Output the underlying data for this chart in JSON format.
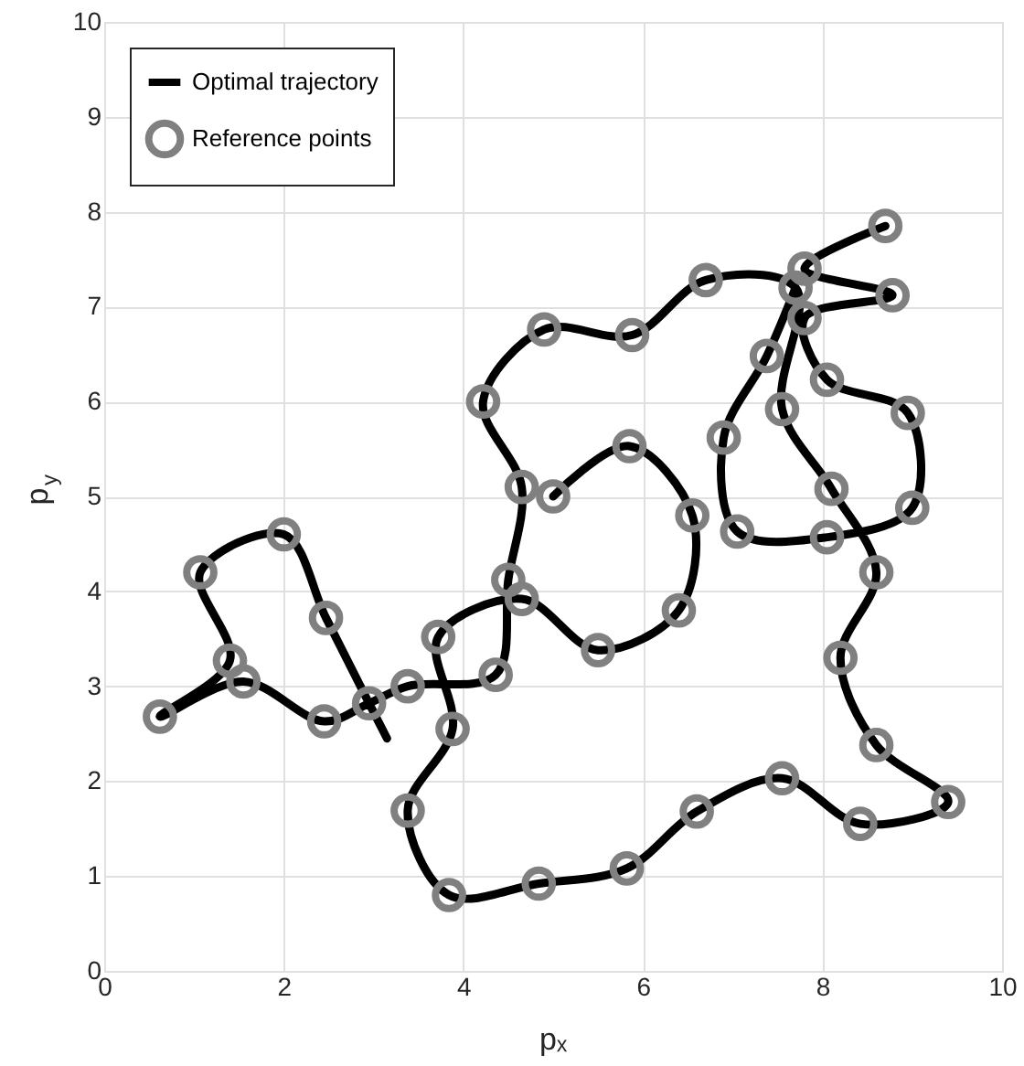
{
  "chart_data": {
    "type": "scatter",
    "xlabel": "pₓ",
    "ylabel": "p$_{y}$",
    "xlim": [
      0,
      10
    ],
    "ylim": [
      0,
      10
    ],
    "xticks": [
      0,
      2,
      4,
      6,
      8,
      10
    ],
    "yticks": [
      0,
      1,
      2,
      3,
      4,
      5,
      6,
      7,
      8,
      9,
      10
    ],
    "grid": true,
    "legend": "top left",
    "series": [
      {
        "name": "Optimal trajectory",
        "type": "line",
        "color": "#000000",
        "marker": "none",
        "line_style": "solid",
        "x": [
          3.15,
          2.95,
          2.47,
          2.0,
          1.07,
          1.4,
          0.62,
          1.55,
          2.45,
          2.95,
          3.38,
          4.36,
          4.5,
          4.65,
          4.22,
          4.9,
          5.88,
          6.7,
          7.7,
          7.55,
          8.1,
          8.6,
          8.2,
          8.6,
          9.4,
          8.42,
          7.55,
          6.6,
          5.82,
          4.84,
          3.84,
          3.38,
          3.88,
          3.72,
          4.65,
          5.5,
          6.4,
          6.55,
          5.85,
          5.0,
          null,
          8.7,
          7.8,
          8.78,
          7.8,
          8.05,
          8.95,
          9.0,
          8.05,
          7.05,
          6.9,
          7.38,
          7.7
        ],
        "values": [
          2.45,
          2.82,
          3.72,
          4.6,
          4.2,
          3.27,
          2.68,
          3.05,
          2.63,
          2.82,
          3.0,
          3.12,
          4.12,
          5.1,
          6.0,
          6.76,
          6.7,
          7.28,
          7.2,
          5.92,
          5.08,
          4.2,
          3.3,
          2.38,
          1.78,
          1.55,
          2.03,
          1.68,
          1.08,
          0.92,
          0.8,
          1.69,
          2.55,
          3.52,
          3.92,
          3.38,
          3.8,
          4.8,
          5.53,
          5.0,
          null,
          7.85,
          7.4,
          7.12,
          6.88,
          6.23,
          5.88,
          4.88,
          4.57,
          4.63,
          5.62,
          6.48,
          7.2
        ]
      },
      {
        "name": "Reference points",
        "color": "#808080",
        "marker": "circle",
        "x": [
          0.62,
          1.07,
          1.4,
          1.55,
          2.0,
          2.47,
          2.45,
          2.95,
          3.38,
          3.72,
          3.88,
          3.38,
          3.84,
          4.84,
          5.82,
          6.6,
          7.55,
          8.42,
          9.4,
          8.6,
          8.2,
          8.6,
          8.1,
          8.05,
          9.0,
          8.95,
          8.05,
          7.55,
          7.05,
          6.9,
          7.38,
          7.7,
          7.8,
          7.8,
          8.78,
          8.7,
          6.7,
          5.88,
          4.9,
          4.22,
          4.65,
          5.0,
          5.85,
          6.55,
          6.4,
          5.5,
          4.65,
          4.5,
          4.36
        ],
        "values": [
          2.68,
          4.2,
          3.27,
          3.05,
          4.6,
          3.72,
          2.63,
          2.82,
          3.0,
          3.52,
          2.55,
          1.69,
          0.8,
          0.92,
          1.08,
          1.68,
          2.03,
          1.55,
          1.78,
          2.38,
          3.3,
          4.2,
          5.08,
          4.57,
          4.88,
          5.88,
          6.23,
          5.92,
          4.63,
          5.62,
          6.48,
          7.2,
          7.4,
          6.88,
          7.12,
          7.85,
          7.28,
          6.7,
          6.76,
          6.0,
          5.1,
          5.0,
          5.53,
          4.8,
          3.8,
          3.38,
          3.92,
          4.12,
          3.12
        ]
      }
    ]
  }
}
